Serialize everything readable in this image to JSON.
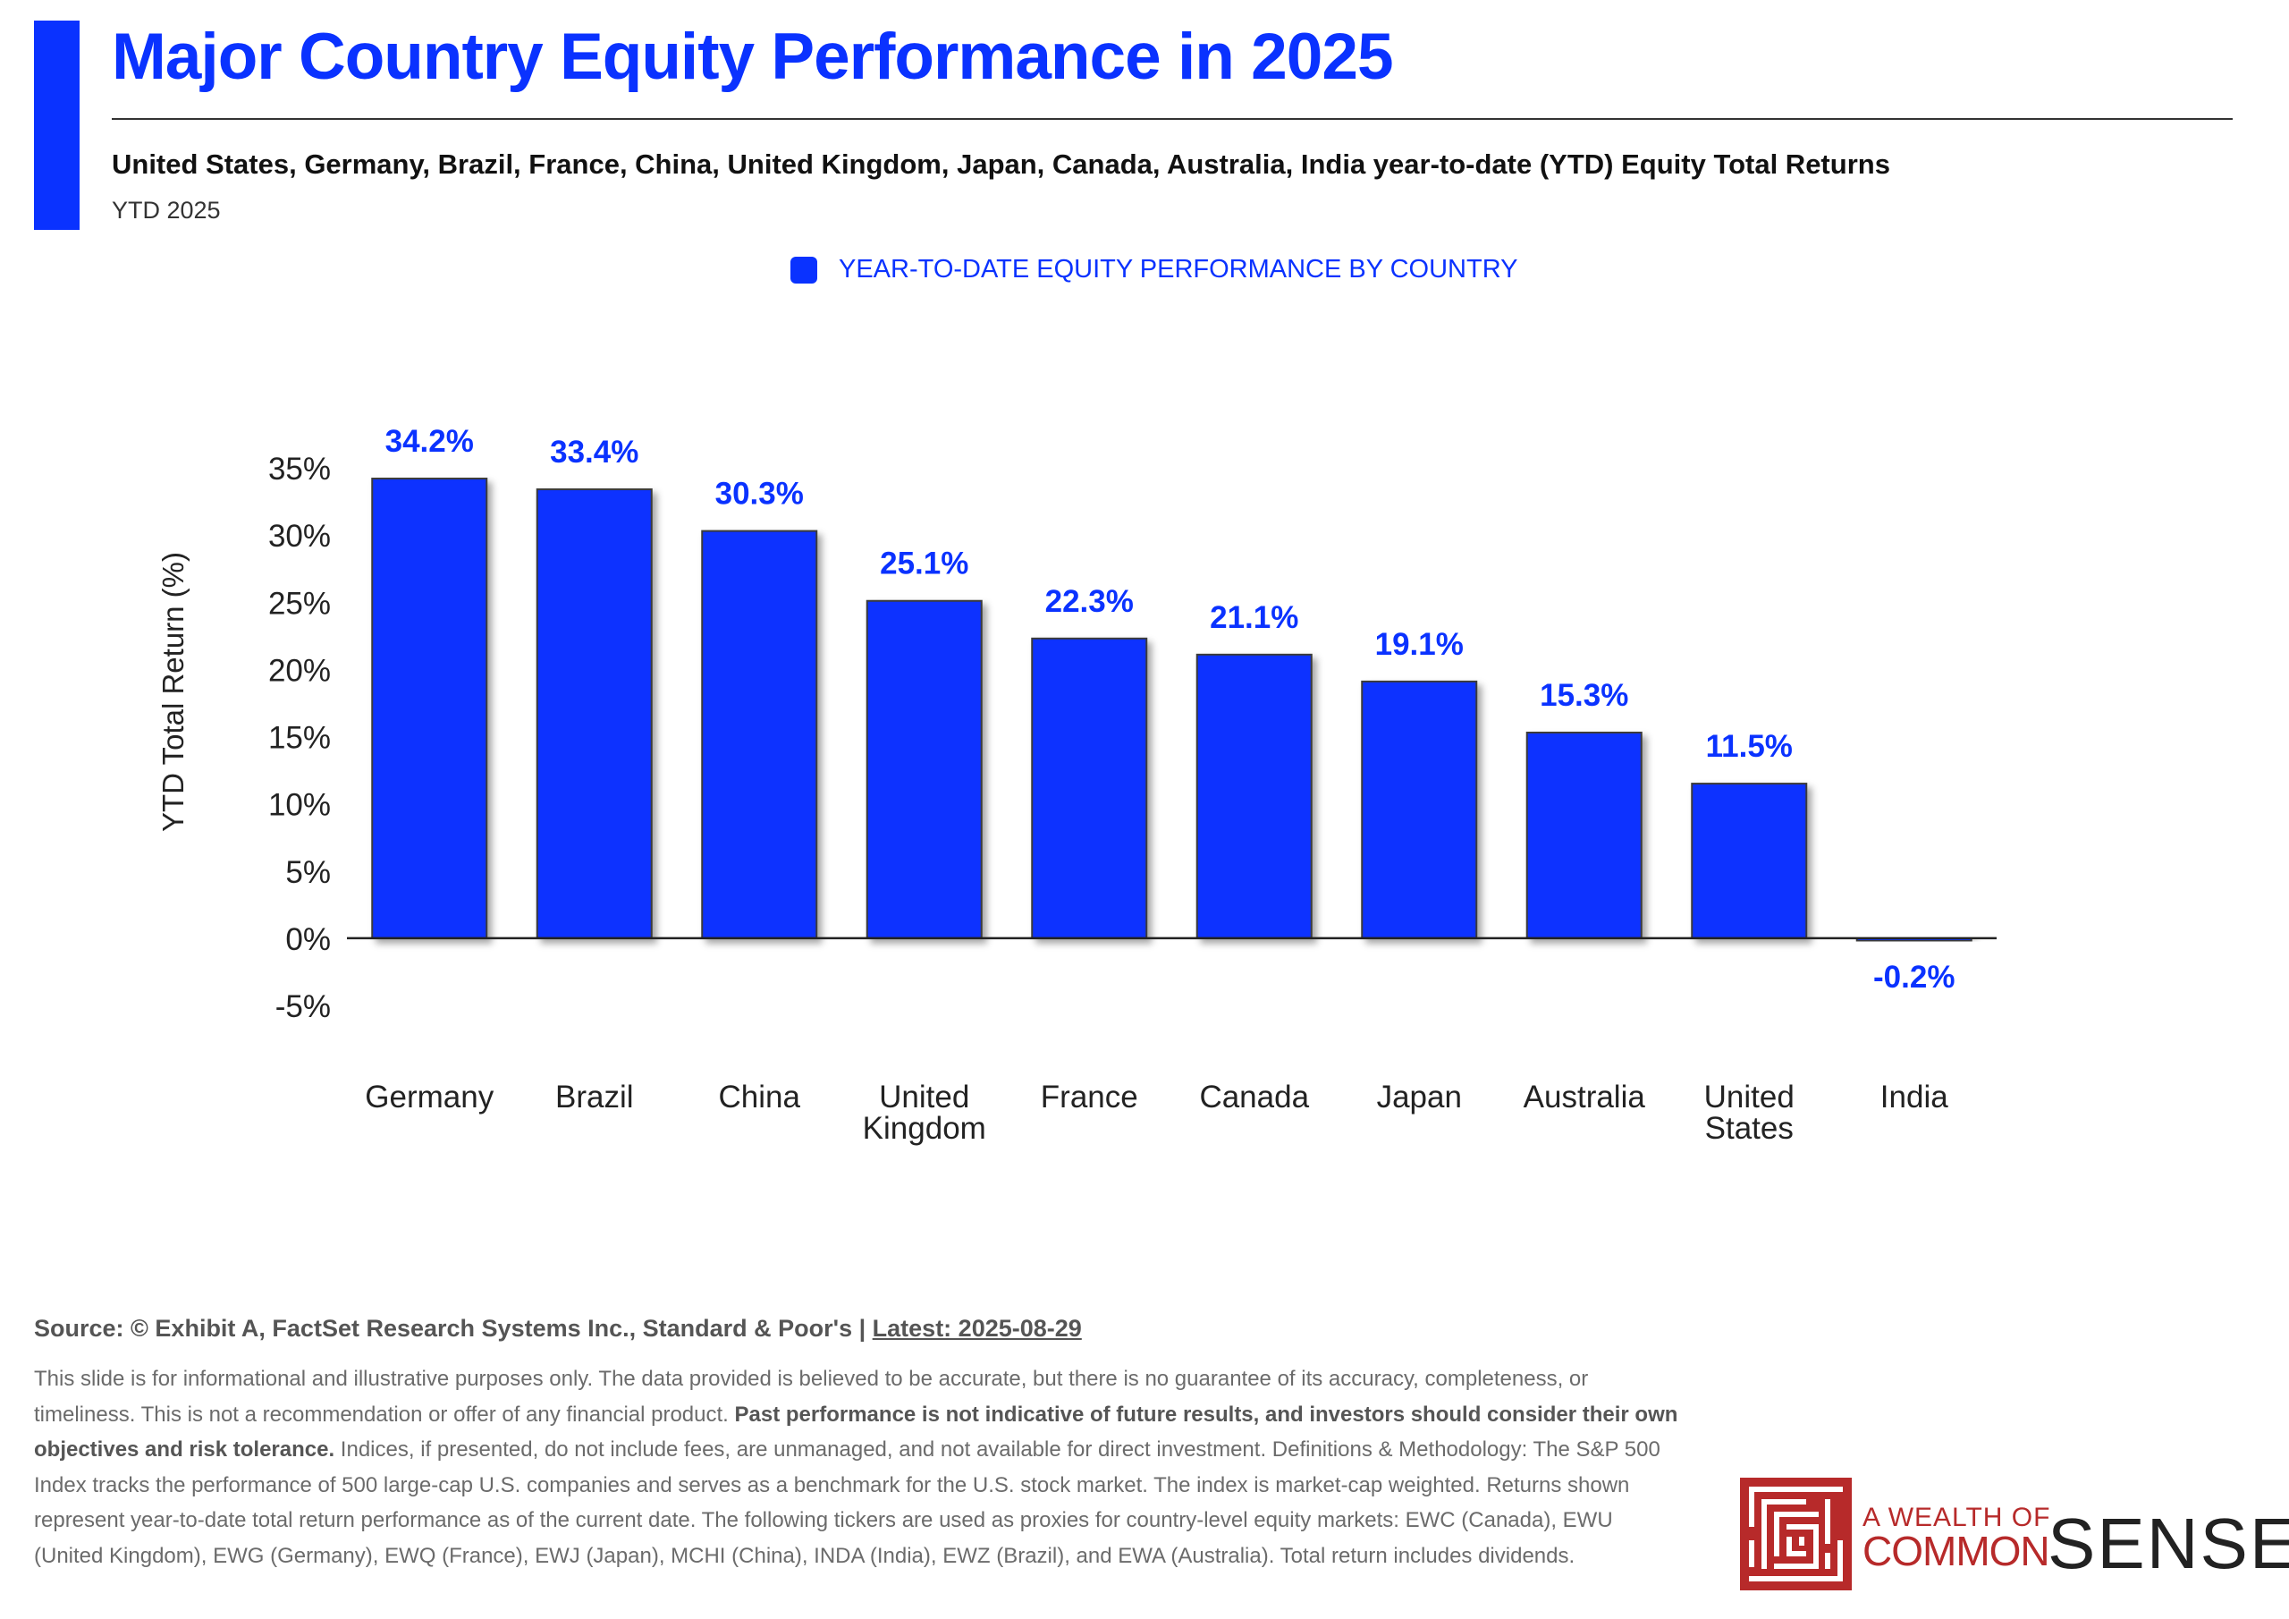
{
  "header": {
    "title": "Major Country Equity Performance in 2025",
    "subtitle": "United States, Germany, Brazil, France, China, United Kingdom, Japan, Canada, Australia, India year-to-date (YTD) Equity Total Returns",
    "period_label": "YTD 2025"
  },
  "colors": {
    "accent": "#0a32ff",
    "bar": "#0a32ff",
    "brand_red": "#b72a2a"
  },
  "chart_data": {
    "type": "bar",
    "categories": [
      [
        "Germany"
      ],
      [
        "Brazil"
      ],
      [
        "China"
      ],
      [
        "United",
        "Kingdom"
      ],
      [
        "France"
      ],
      [
        "Canada"
      ],
      [
        "Japan"
      ],
      [
        "Australia"
      ],
      [
        "United",
        "States"
      ],
      [
        "India"
      ]
    ],
    "series": [
      {
        "name": "YEAR-TO-DATE EQUITY PERFORMANCE BY COUNTRY",
        "values": [
          34.2,
          33.4,
          30.3,
          25.1,
          22.3,
          21.1,
          19.1,
          15.3,
          11.5,
          -0.2
        ],
        "labels": [
          "34.2%",
          "33.4%",
          "30.3%",
          "25.1%",
          "22.3%",
          "21.1%",
          "19.1%",
          "15.3%",
          "11.5%",
          "-0.2%"
        ]
      }
    ],
    "ylabel": "YTD Total Return (%)",
    "ylim": [
      -5,
      35
    ],
    "yticks": [
      35,
      30,
      25,
      20,
      15,
      10,
      5,
      0,
      -5
    ],
    "ytick_labels": [
      "35%",
      "30%",
      "25%",
      "20%",
      "15%",
      "10%",
      "5%",
      "0%",
      "-5%"
    ],
    "grid": false,
    "legend": "top-center"
  },
  "footer": {
    "source_prefix": "Source: © Exhibit A, FactSet Research Systems Inc., Standard & Poor's | ",
    "source_latest": "Latest: 2025-08-29",
    "disclaimer_1": "This slide is for informational and illustrative purposes only. The data provided is believed to be accurate, but there is no guarantee of its accuracy, completeness, or timeliness. This is not a recommendation or offer of any financial product. ",
    "disclaimer_bold": "Past performance is not indicative of future results, and investors should consider their own objectives and risk tolerance.",
    "disclaimer_2": " Indices, if presented, do not include fees, are unmanaged, and not available for direct investment. Definitions & Methodology: The S&P 500 Index tracks the performance of 500 large-cap U.S. companies and serves as a benchmark for the U.S. stock market. The index is market-cap weighted. Returns shown represent year-to-date total return performance as of the current date. The following tickers are used as proxies for country-level equity markets: EWC (Canada), EWU (United Kingdom), EWG (Germany), EWQ (France), EWJ (Japan), MCHI (China), INDA (India), EWZ (Brazil), and EWA (Australia). Total return includes dividends."
  },
  "logo": {
    "line1": "A WEALTH OF",
    "line2": "COMMON",
    "line3": "SENSE"
  }
}
